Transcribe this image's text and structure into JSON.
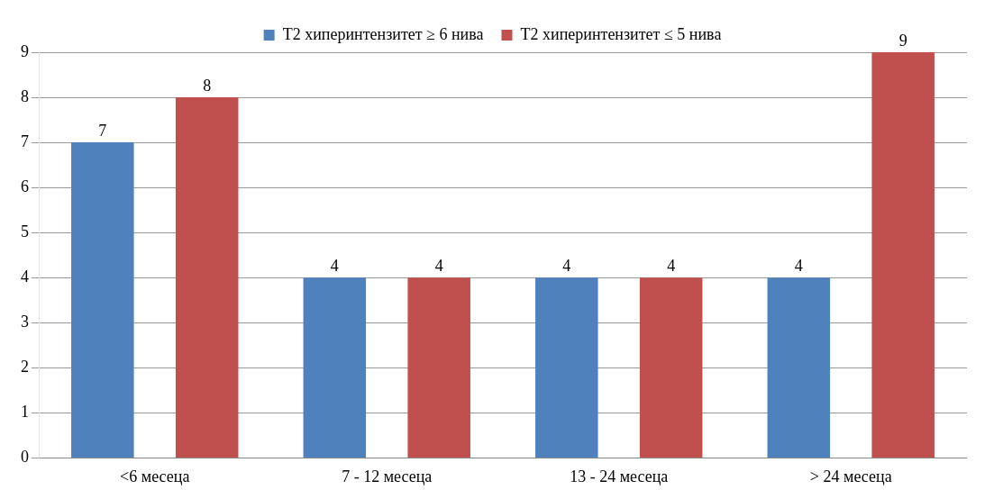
{
  "chart_data": {
    "type": "bar",
    "categories": [
      "<6 месеца",
      "7 - 12 месеца",
      "13 - 24 месеца",
      "> 24 месеца"
    ],
    "series": [
      {
        "name": "Т2 хиперинтензитет ≥ 6 нива",
        "color": "#4f81bd",
        "values": [
          7,
          4,
          4,
          4
        ]
      },
      {
        "name": "Т2 хиперинтензитет ≤ 5 нива",
        "color": "#c0504d",
        "values": [
          8,
          4,
          4,
          9
        ]
      }
    ],
    "ylim": [
      0,
      9
    ],
    "yticks": [
      0,
      1,
      2,
      3,
      4,
      5,
      6,
      7,
      8,
      9
    ],
    "grid": "y",
    "legend": "top",
    "data_labels": true
  }
}
